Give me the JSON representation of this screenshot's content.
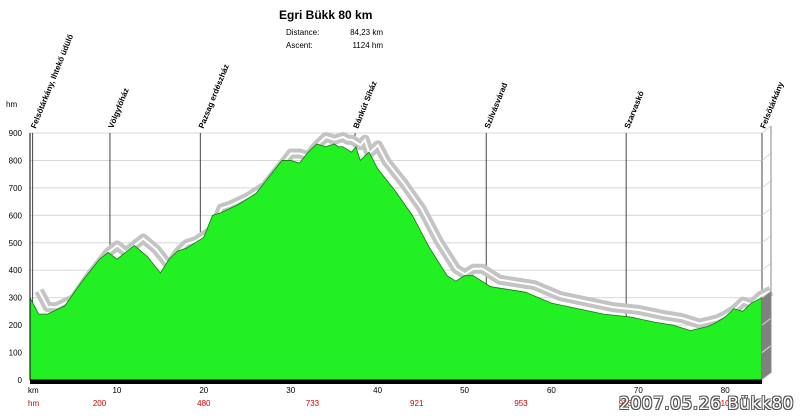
{
  "header": {
    "title": "Egri Bükk 80 km",
    "distance_label": "Distance:",
    "distance_value": "84,23 km",
    "ascent_label": "Ascent:",
    "ascent_value": "1124 hm"
  },
  "watermark": "2007.05.26 Bükk80",
  "colors": {
    "profile_fill": "#22f022",
    "shadow": "#c4c4c4",
    "hm_row": "#cc0000",
    "side": "#808080"
  },
  "chart_data": {
    "type": "area",
    "title": "Egri Bükk 80 km",
    "y_unit": "hm",
    "x_unit": "km",
    "ylim": [
      0,
      900
    ],
    "xlim": [
      0,
      84.23
    ],
    "yticks": [
      0,
      100,
      200,
      300,
      400,
      500,
      600,
      700,
      800,
      900
    ],
    "xticks": [
      10,
      20,
      30,
      40,
      50,
      60,
      70,
      80
    ],
    "grid": true,
    "x_km": [
      0,
      1,
      2,
      4,
      6,
      8,
      9,
      10,
      12,
      13.5,
      15,
      16,
      17,
      18,
      19,
      20,
      21,
      22,
      24,
      26,
      28,
      29,
      30,
      31,
      32,
      33,
      34,
      35,
      35.5,
      36,
      37,
      37.5,
      38,
      39,
      40,
      42,
      44,
      46,
      48,
      49,
      50,
      51,
      52,
      53,
      55,
      57,
      60,
      63,
      66,
      69,
      72,
      74,
      76,
      78,
      79,
      80,
      81,
      82,
      83,
      84.23
    ],
    "elevation_m": [
      300,
      240,
      240,
      270,
      360,
      440,
      465,
      440,
      490,
      450,
      390,
      440,
      470,
      480,
      500,
      520,
      600,
      610,
      640,
      680,
      760,
      800,
      800,
      790,
      830,
      860,
      850,
      860,
      850,
      850,
      830,
      850,
      800,
      830,
      770,
      690,
      600,
      480,
      380,
      360,
      380,
      380,
      360,
      340,
      330,
      320,
      280,
      260,
      240,
      230,
      210,
      200,
      180,
      195,
      210,
      230,
      260,
      250,
      280,
      300
    ],
    "waypoints": [
      {
        "name": "Felsőtárkány, Ihtekő üdülő",
        "km": 0.3
      },
      {
        "name": "Völgyfőház",
        "km": 9.2
      },
      {
        "name": "Pazsag erdészház",
        "km": 19.6
      },
      {
        "name": "Bánkút Síház",
        "km": 37.4
      },
      {
        "name": "Szilvásvárad",
        "km": 52.5
      },
      {
        "name": "Szarvaskő",
        "km": 68.6
      },
      {
        "name": "Felsőtárkány",
        "km": 84.23
      }
    ],
    "hm_row_label": "hm",
    "hm_values": [
      {
        "km": 8,
        "value": "200"
      },
      {
        "km": 20,
        "value": "480"
      },
      {
        "km": 32.5,
        "value": "733"
      },
      {
        "km": 44.5,
        "value": "921"
      },
      {
        "km": 56.5,
        "value": "953"
      },
      {
        "km": 68.5,
        "value": "973"
      },
      {
        "km": 80.5,
        "value": "1088"
      }
    ]
  }
}
